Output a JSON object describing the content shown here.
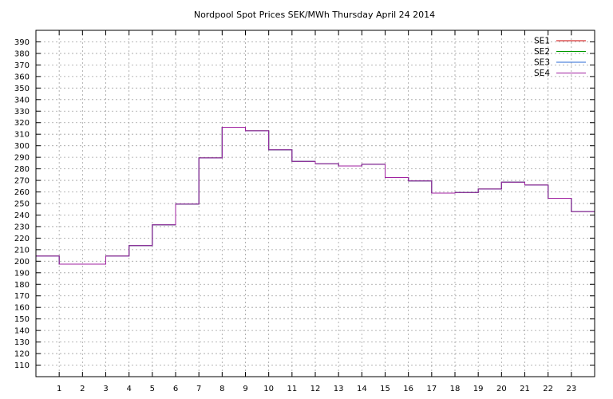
{
  "chart_data": {
    "type": "line",
    "title": "Nordpool Spot Prices SEK/MWh Thursday April 24 2014",
    "xlabel": "",
    "ylabel": "",
    "x": [
      0,
      1,
      2,
      3,
      4,
      5,
      6,
      7,
      8,
      9,
      10,
      11,
      12,
      13,
      14,
      15,
      16,
      17,
      18,
      19,
      20,
      21,
      22,
      23
    ],
    "x_ticks": [
      "1",
      "2",
      "3",
      "4",
      "5",
      "6",
      "7",
      "8",
      "9",
      "10",
      "11",
      "12",
      "13",
      "14",
      "15",
      "16",
      "17",
      "18",
      "19",
      "20",
      "21",
      "22",
      "23"
    ],
    "y_ticks": [
      "110",
      "120",
      "130",
      "140",
      "150",
      "160",
      "170",
      "180",
      "190",
      "200",
      "210",
      "220",
      "230",
      "240",
      "250",
      "260",
      "270",
      "280",
      "290",
      "300",
      "310",
      "320",
      "330",
      "340",
      "350",
      "360",
      "370",
      "380",
      "390"
    ],
    "xlim": [
      0,
      24
    ],
    "ylim": [
      100,
      400
    ],
    "grid": true,
    "step": true,
    "legend_position": "top-right",
    "series": [
      {
        "name": "SE1",
        "color": "#cc0000",
        "values": [
          204.5,
          197.5,
          197.5,
          204.5,
          213.5,
          231.5,
          249.5,
          289.5,
          316,
          313,
          296.5,
          286.5,
          284.5,
          282.5,
          284,
          272.5,
          269.5,
          259,
          259.5,
          262.5,
          268.5,
          266,
          254.5,
          243
        ]
      },
      {
        "name": "SE2",
        "color": "#009900",
        "values": [
          204.5,
          197.5,
          197.5,
          204.5,
          213.5,
          231.5,
          249.5,
          289.5,
          316,
          313,
          296.5,
          286.5,
          284.5,
          282.5,
          284,
          272.5,
          269.5,
          259,
          259.5,
          262.5,
          268.5,
          266,
          254.5,
          243
        ]
      },
      {
        "name": "SE3",
        "color": "#2a6ad6",
        "values": [
          204.5,
          197.5,
          197.5,
          204.5,
          213.5,
          231.5,
          249.5,
          289.5,
          316,
          313,
          296.5,
          286.5,
          284.5,
          282.5,
          284,
          272.5,
          269.5,
          259,
          259.5,
          262.5,
          268.5,
          266,
          254.5,
          243
        ]
      },
      {
        "name": "SE4",
        "color": "#a020a0",
        "values": [
          204.5,
          197.5,
          197.5,
          204.5,
          213.5,
          231.5,
          249.5,
          289.5,
          316,
          313,
          296.5,
          286.5,
          284.5,
          282.5,
          284,
          272.5,
          269.5,
          259,
          259.5,
          262.5,
          268.5,
          266,
          254.5,
          243
        ]
      }
    ]
  }
}
